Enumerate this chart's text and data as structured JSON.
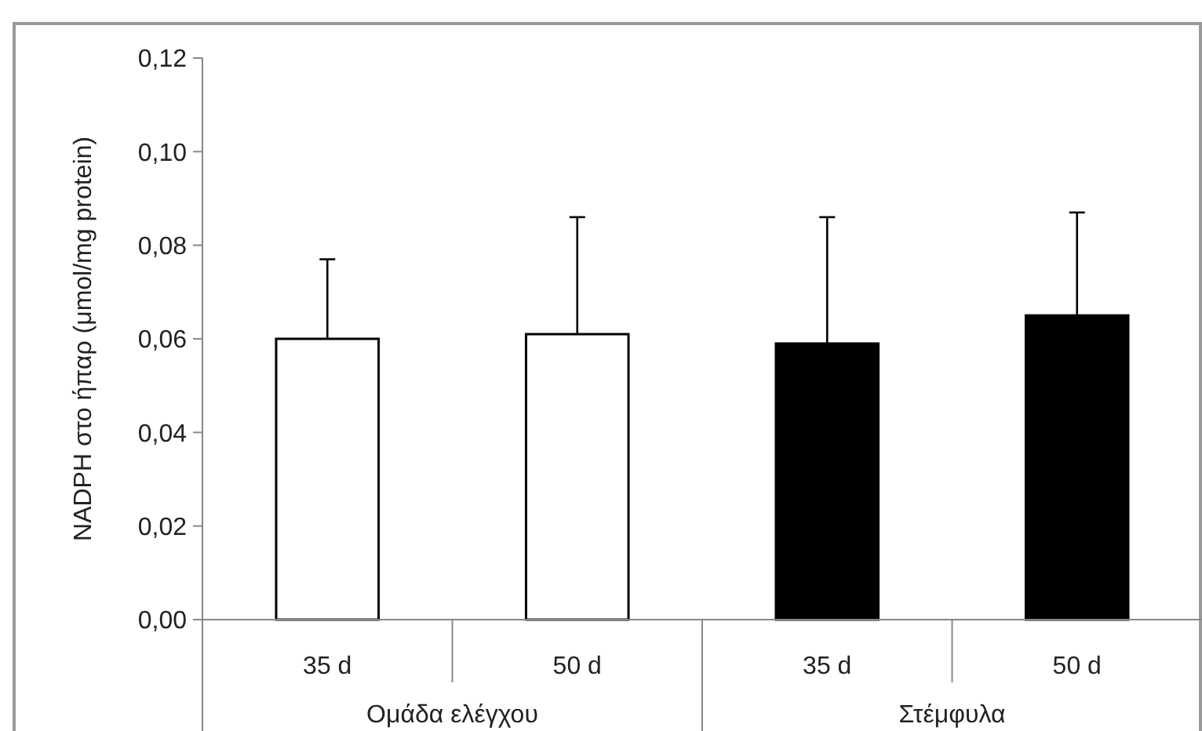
{
  "chart_data": {
    "type": "bar",
    "ylabel": "NADPH στο ήπαρ (μmol/mg protein)",
    "categories": [
      "35 d",
      "50 d",
      "35 d",
      "50 d"
    ],
    "values": [
      0.06,
      0.061,
      0.059,
      0.065
    ],
    "colors": [
      "#ffffff",
      "#ffffff",
      "#000000",
      "#000000"
    ],
    "errors": [
      [
        0.06,
        0.077
      ],
      [
        0.061,
        0.086
      ],
      [
        0.059,
        0.086
      ],
      [
        0.065,
        0.087
      ]
    ],
    "annotations": [
      "Ομάδα ελέγχου",
      "Στέμφυλα"
    ],
    "ylim": [
      0,
      0.12
    ],
    "yticks": [
      {
        "value": 0,
        "label": "0,00"
      },
      {
        "value": 0.02,
        "label": "0,02"
      },
      {
        "value": 0.04,
        "label": "0,04"
      },
      {
        "value": 0.06,
        "label": "0,06"
      },
      {
        "value": 0.08,
        "label": "0,08"
      },
      {
        "value": 0.1,
        "label": "0,10"
      },
      {
        "value": 0.12,
        "label": "0,12"
      }
    ]
  }
}
